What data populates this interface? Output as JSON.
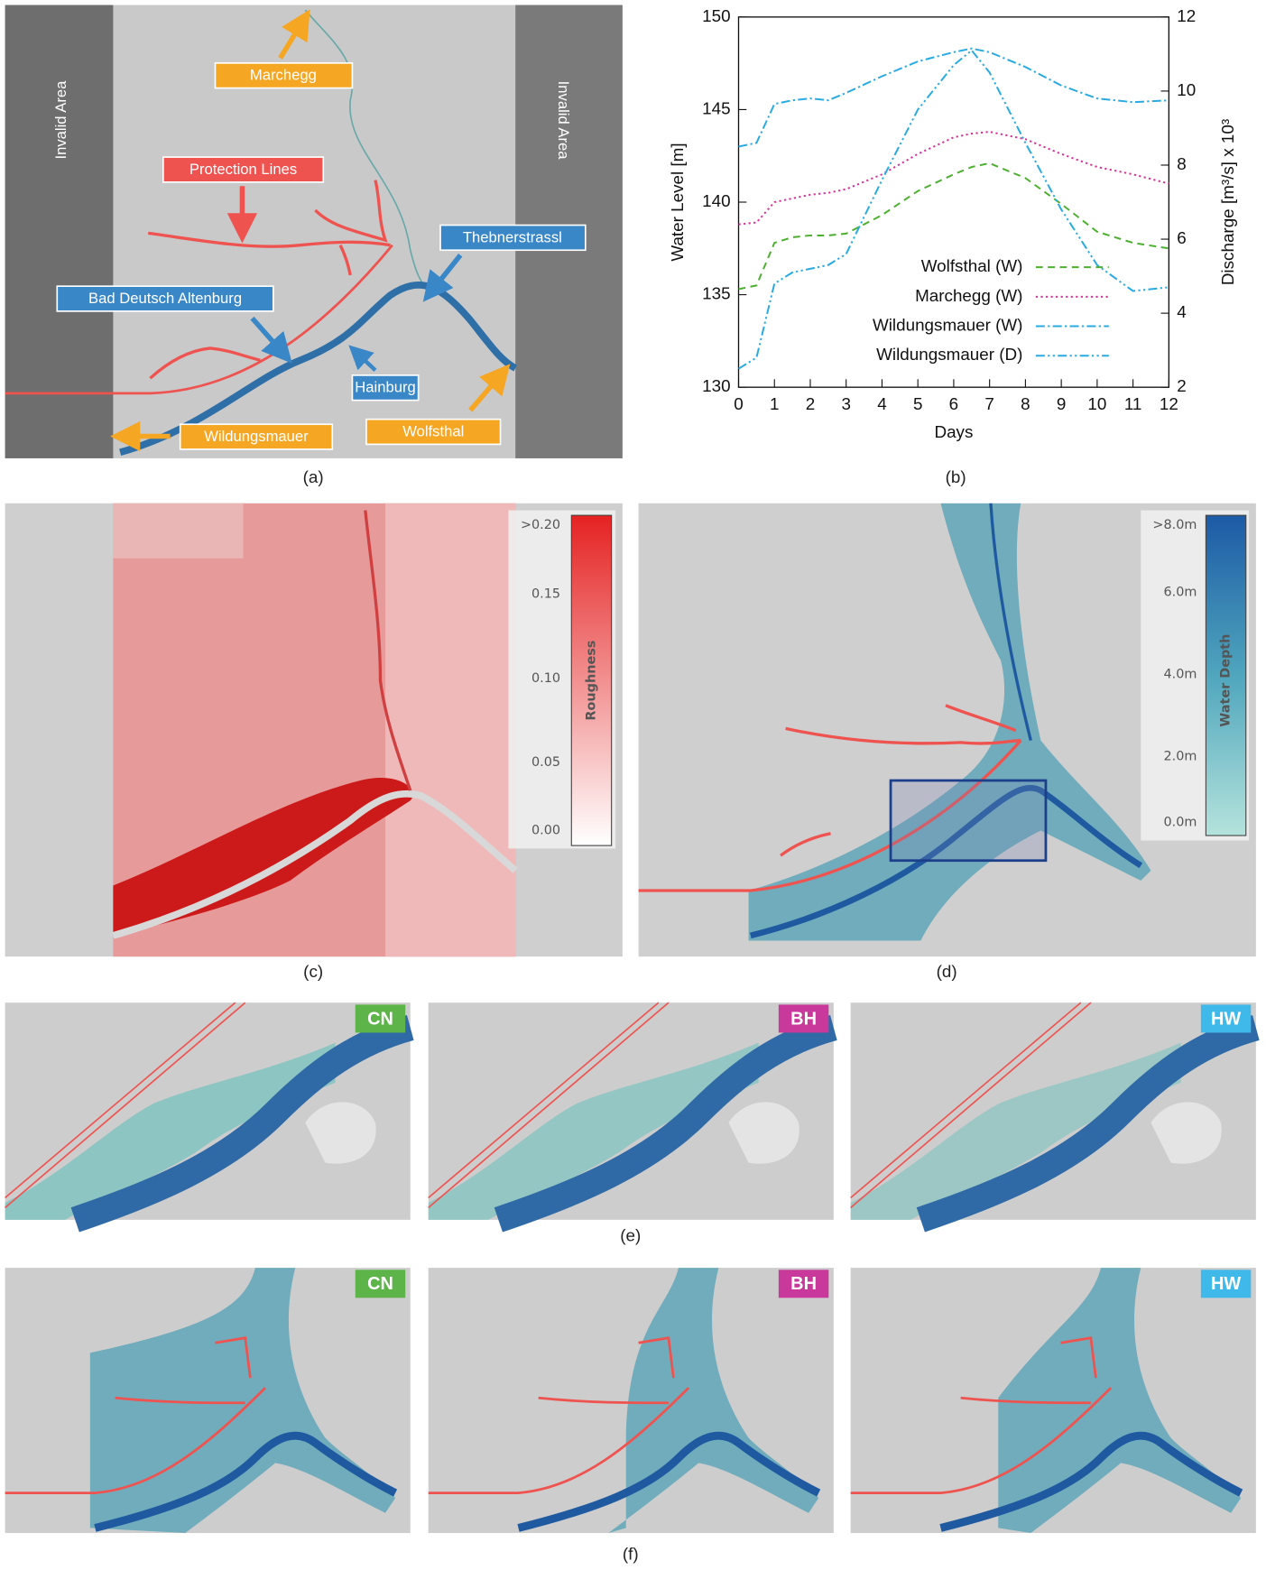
{
  "panel_a": {
    "caption": "(a)",
    "invalid_left": "Invalid Area",
    "invalid_right": "Invalid Area",
    "marchegg": "Marchegg",
    "protection_lines": "Protection Lines",
    "thebnerstrassl": "Thebnerstrassl",
    "bad_deutsch_altenburg": "Bad Deutsch Altenburg",
    "hainburg": "Hainburg",
    "wolfsthal": "Wolfsthal",
    "wildungsmauer": "Wildungsmauer"
  },
  "chart_data": {
    "type": "line",
    "caption": "(b)",
    "x_label": "Days",
    "y_label": "Water Level [m]",
    "y2_label": "Discharge [m³/s] x 10³",
    "x": [
      0,
      0.5,
      1,
      1.5,
      2,
      2.5,
      3,
      4,
      5,
      6,
      6.5,
      7,
      8,
      9,
      10,
      11,
      12
    ],
    "xlim": [
      0,
      12
    ],
    "xticks": [
      0,
      1,
      2,
      3,
      4,
      5,
      6,
      7,
      8,
      9,
      10,
      11,
      12
    ],
    "ylim": [
      130,
      150
    ],
    "yticks": [
      130,
      135,
      140,
      145,
      150
    ],
    "y2lim": [
      2,
      12
    ],
    "y2ticks": [
      2,
      4,
      6,
      8,
      10,
      12
    ],
    "legend": "lower right",
    "series": [
      {
        "name": "Wolfsthal (W)",
        "color": "#4daf2f",
        "dash": "dashed",
        "values": [
          135.3,
          135.5,
          137.8,
          138.1,
          138.2,
          138.2,
          138.3,
          139.3,
          140.6,
          141.5,
          141.9,
          142.1,
          141.3,
          139.9,
          138.4,
          137.8,
          137.5
        ]
      },
      {
        "name": "Marchegg (W)",
        "color": "#d6339a",
        "dash": "dotted",
        "values": [
          138.8,
          138.9,
          140.0,
          140.2,
          140.4,
          140.5,
          140.7,
          141.5,
          142.6,
          143.5,
          143.7,
          143.8,
          143.4,
          142.6,
          141.9,
          141.5,
          141.0
        ]
      },
      {
        "name": "Wildungsmauer (W)",
        "color": "#29abe2",
        "dash": "dashdot",
        "values": [
          143.0,
          143.2,
          145.3,
          145.5,
          145.6,
          145.5,
          145.9,
          146.8,
          147.6,
          148.1,
          148.3,
          148.1,
          147.3,
          146.3,
          145.6,
          145.4,
          145.5
        ]
      },
      {
        "name": "Wildungsmauer (D)",
        "color": "#29abe2",
        "dash": "dashdotdot",
        "axis": "y2",
        "values": [
          2.5,
          2.8,
          4.8,
          5.1,
          5.2,
          5.3,
          5.6,
          7.6,
          9.5,
          10.7,
          11.1,
          10.5,
          8.6,
          6.8,
          5.3,
          4.6,
          4.7
        ]
      }
    ]
  },
  "panel_c": {
    "caption": "(c)",
    "legend_title": "Roughness",
    "legend_labels": [
      ">0.20",
      "0.15",
      "0.10",
      "0.05",
      "0.00"
    ]
  },
  "panel_d": {
    "caption": "(d)",
    "legend_title": "Water Depth",
    "legend_labels": [
      ">8.0m",
      "6.0m",
      "4.0m",
      "2.0m",
      "0.0m"
    ]
  },
  "panel_e": {
    "caption": "(e)",
    "badges": [
      "CN",
      "BH",
      "HW"
    ]
  },
  "panel_f": {
    "caption": "(f)",
    "badges": [
      "CN",
      "BH",
      "HW"
    ]
  }
}
